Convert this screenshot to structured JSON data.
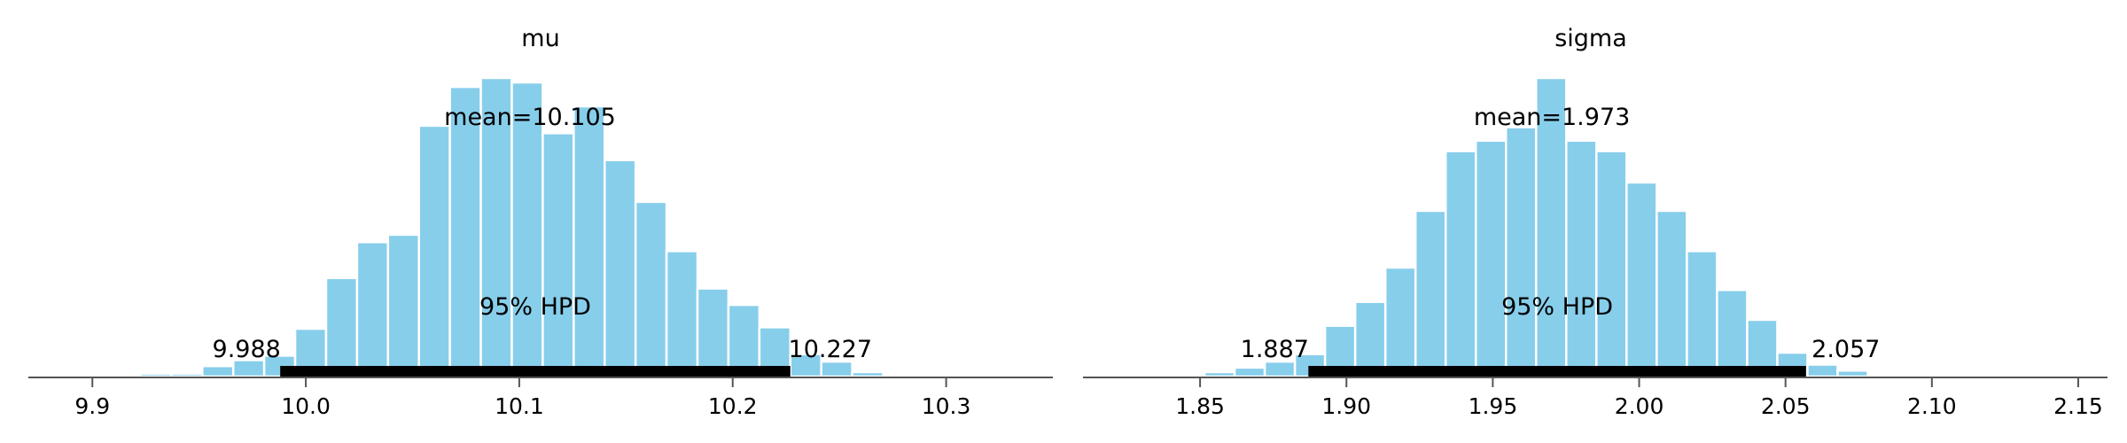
{
  "colors": {
    "bar": "#87ceeb",
    "bar_edge": "#ffffff",
    "hpd_line": "#000000",
    "axis": "#555555"
  },
  "chart_data": [
    {
      "type": "bar",
      "title": "mu",
      "mean_label": "mean=10.105",
      "hpd_label": "95% HPD",
      "hpd_low_label": "9.988",
      "hpd_high_label": "10.227",
      "hpd": [
        9.988,
        10.227
      ],
      "xlim": [
        9.87,
        10.35
      ],
      "ticks": [
        9.9,
        10.0,
        10.1,
        10.2,
        10.3
      ],
      "tick_labels": [
        "9.9",
        "10.0",
        "10.1",
        "10.2",
        "10.3"
      ],
      "bin_start": 9.9225,
      "bin_width": 0.0145,
      "counts": [
        0.01,
        0.01,
        0.035,
        0.055,
        0.07,
        0.16,
        0.33,
        0.45,
        0.475,
        0.84,
        0.97,
        1.0,
        0.985,
        0.815,
        0.905,
        0.725,
        0.585,
        0.42,
        0.295,
        0.24,
        0.165,
        0.075,
        0.05,
        0.015
      ]
    },
    {
      "type": "bar",
      "title": "sigma",
      "mean_label": "mean=1.973",
      "hpd_label": "95% HPD",
      "hpd_low_label": "1.887",
      "hpd_high_label": "2.057",
      "hpd": [
        1.887,
        2.057
      ],
      "xlim": [
        1.81,
        2.16
      ],
      "ticks": [
        1.85,
        1.9,
        1.95,
        2.0,
        2.05,
        2.1,
        2.15
      ],
      "tick_labels": [
        "1.85",
        "1.90",
        "1.95",
        "2.00",
        "2.05",
        "2.10",
        "2.15"
      ],
      "bin_start": 1.8515,
      "bin_width": 0.0103,
      "counts": [
        0.015,
        0.03,
        0.05,
        0.075,
        0.17,
        0.25,
        0.365,
        0.555,
        0.755,
        0.79,
        0.835,
        1.0,
        0.79,
        0.755,
        0.65,
        0.555,
        0.42,
        0.29,
        0.19,
        0.08,
        0.04,
        0.02,
        0.0,
        0.005,
        0.005
      ]
    }
  ]
}
